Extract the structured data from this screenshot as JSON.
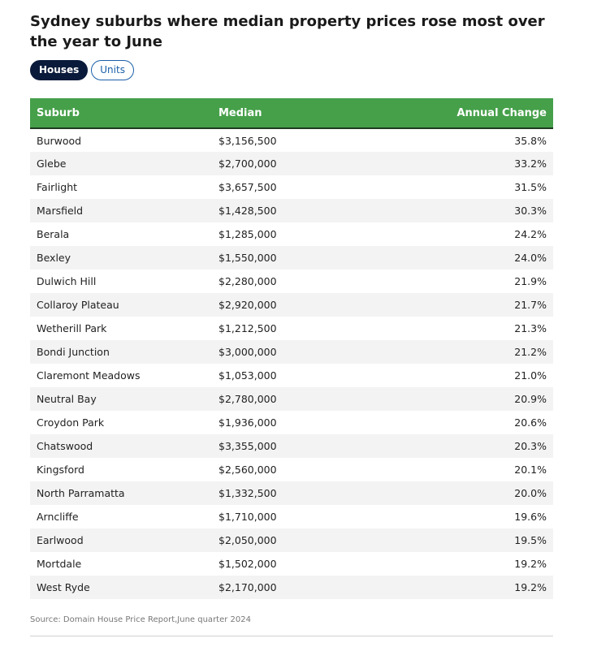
{
  "title": "Sydney suburbs where median property prices rose most over the year to June",
  "tabs": [
    {
      "label": "Houses",
      "active": true
    },
    {
      "label": "Units",
      "active": false
    }
  ],
  "colors": {
    "header_bg": "#46a04a",
    "active_tab_bg": "#0a1a3a",
    "inactive_tab_text": "#1a5fa8"
  },
  "source": "Source: Domain House Price Report,June quarter 2024",
  "chart_data": {
    "type": "table",
    "columns": [
      "Suburb",
      "Median",
      "Annual Change"
    ],
    "rows": [
      [
        "Burwood",
        "$3,156,500",
        "35.8%"
      ],
      [
        "Glebe",
        "$2,700,000",
        "33.2%"
      ],
      [
        "Fairlight",
        "$3,657,500",
        "31.5%"
      ],
      [
        "Marsfield",
        "$1,428,500",
        "30.3%"
      ],
      [
        "Berala",
        "$1,285,000",
        "24.2%"
      ],
      [
        "Bexley",
        "$1,550,000",
        "24.0%"
      ],
      [
        "Dulwich Hill",
        "$2,280,000",
        "21.9%"
      ],
      [
        "Collaroy Plateau",
        "$2,920,000",
        "21.7%"
      ],
      [
        "Wetherill Park",
        "$1,212,500",
        "21.3%"
      ],
      [
        "Bondi Junction",
        "$3,000,000",
        "21.2%"
      ],
      [
        "Claremont Meadows",
        "$1,053,000",
        "21.0%"
      ],
      [
        "Neutral Bay",
        "$2,780,000",
        "20.9%"
      ],
      [
        "Croydon Park",
        "$1,936,000",
        "20.6%"
      ],
      [
        "Chatswood",
        "$3,355,000",
        "20.3%"
      ],
      [
        "Kingsford",
        "$2,560,000",
        "20.1%"
      ],
      [
        "North Parramatta",
        "$1,332,500",
        "20.0%"
      ],
      [
        "Arncliffe",
        "$1,710,000",
        "19.6%"
      ],
      [
        "Earlwood",
        "$2,050,000",
        "19.5%"
      ],
      [
        "Mortdale",
        "$1,502,000",
        "19.2%"
      ],
      [
        "West Ryde",
        "$2,170,000",
        "19.2%"
      ]
    ]
  }
}
